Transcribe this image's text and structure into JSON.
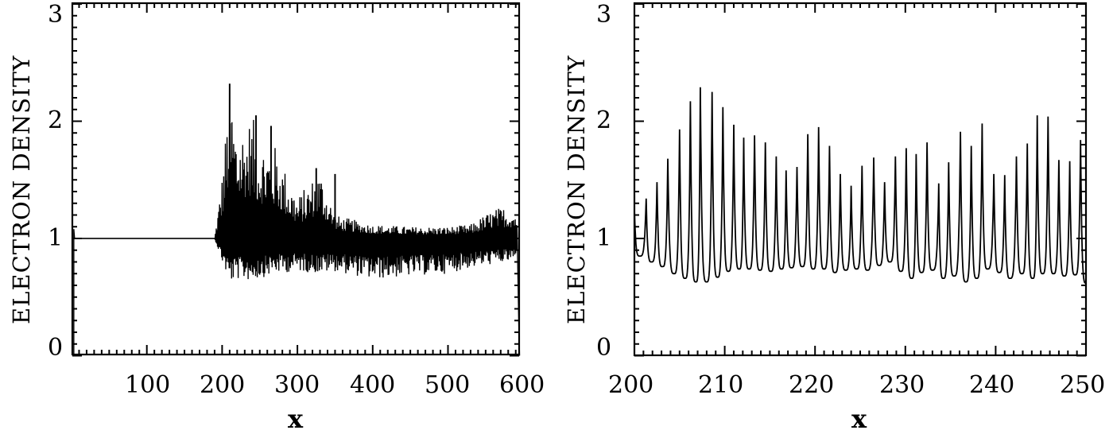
{
  "chart_data": [
    {
      "type": "line",
      "title": "",
      "xlabel": "x",
      "ylabel": "ELECTRON DENSITY",
      "xlim": [
        0,
        595
      ],
      "ylim": [
        -0.1,
        3.0
      ],
      "xticks": [
        100,
        200,
        300,
        400,
        500,
        600
      ],
      "xtick_labels": [
        "100",
        "200",
        "300",
        "400",
        "500",
        "600"
      ],
      "yticks": [
        0,
        1,
        2,
        3
      ],
      "ytick_labels": [
        "0",
        "1",
        "2",
        "3"
      ],
      "grid": false,
      "legend": null,
      "description": "Electron density profile: ~0 at x<3, flat at 1.0 from x≈3 to ≈190, then strong oscillations beginning ≈195 with maximum peak ≈2.32 near x≈210, decaying envelope to ~1±0.15 by x≈400, slight growth near x≈560-590, dropping to 0 at x≈595.",
      "envelope": {
        "x": [
          3,
          10,
          100,
          190,
          200,
          210,
          220,
          240,
          250,
          270,
          300,
          330,
          350,
          400,
          450,
          500,
          530,
          560,
          580,
          592,
          595
        ],
        "upper": [
          1.08,
          1.0,
          1.0,
          1.0,
          1.55,
          2.32,
          1.95,
          2.05,
          1.85,
          1.8,
          1.35,
          1.6,
          1.2,
          1.12,
          1.1,
          1.1,
          1.12,
          1.25,
          1.28,
          1.25,
          0.0
        ],
        "lower": [
          0.0,
          1.0,
          1.0,
          1.0,
          0.8,
          0.62,
          0.65,
          0.64,
          0.66,
          0.7,
          0.72,
          0.7,
          0.72,
          0.65,
          0.68,
          0.7,
          0.75,
          0.78,
          0.8,
          0.82,
          0.0
        ]
      },
      "notable_peaks": [
        {
          "x": 210,
          "y": 2.32
        },
        {
          "x": 245,
          "y": 2.05
        },
        {
          "x": 265,
          "y": 1.96
        },
        {
          "x": 325,
          "y": 1.6
        },
        {
          "x": 350,
          "y": 1.55
        }
      ]
    },
    {
      "type": "line",
      "title": "",
      "xlabel": "x",
      "ylabel": "ELECTRON DENSITY",
      "xlim": [
        200,
        250
      ],
      "ylim": [
        -0.1,
        3.0
      ],
      "xticks": [
        200,
        210,
        220,
        230,
        240,
        250
      ],
      "xtick_labels": [
        "200",
        "210",
        "220",
        "230",
        "240",
        "250"
      ],
      "yticks": [
        0,
        1,
        2,
        3
      ],
      "ytick_labels": [
        "0",
        "1",
        "2",
        "3"
      ],
      "grid": false,
      "legend": null,
      "description": "Zoom of left panel over x=200..250: periodic sharp peaks with period ≈1.2, minima ≈0.62-0.85.",
      "peaks": {
        "x": [
          200.0,
          201.3,
          202.5,
          203.7,
          205.0,
          206.2,
          207.3,
          208.6,
          209.8,
          211.0,
          212.1,
          213.3,
          214.5,
          215.7,
          216.8,
          218.0,
          219.2,
          220.4,
          221.6,
          222.8,
          224.0,
          225.2,
          226.5,
          227.7,
          228.9,
          230.1,
          231.2,
          232.4,
          233.7,
          234.8,
          236.1,
          237.3,
          238.5,
          239.8,
          241.0,
          242.3,
          243.5,
          244.6,
          245.8,
          247.0,
          248.2,
          249.4
        ],
        "y": [
          1.25,
          1.34,
          1.48,
          1.68,
          1.93,
          2.17,
          2.29,
          2.25,
          2.12,
          1.97,
          1.86,
          1.88,
          1.82,
          1.7,
          1.58,
          1.61,
          1.89,
          1.95,
          1.79,
          1.55,
          1.45,
          1.62,
          1.69,
          1.48,
          1.7,
          1.77,
          1.72,
          1.82,
          1.47,
          1.65,
          1.91,
          1.79,
          1.98,
          1.55,
          1.54,
          1.7,
          1.81,
          2.05,
          2.04,
          1.67,
          1.66,
          1.84
        ]
      },
      "minima": {
        "x": [
          200.6,
          201.9,
          203.1,
          204.4,
          205.6,
          206.8,
          208.0,
          209.2,
          210.4,
          211.6,
          212.7,
          213.9,
          215.1,
          216.3,
          217.4,
          218.6,
          219.8,
          221.0,
          222.2,
          223.4,
          224.6,
          225.8,
          227.1,
          228.3,
          229.5,
          230.7,
          231.8,
          233.0,
          234.2,
          235.4,
          236.7,
          237.9,
          239.1,
          240.4,
          241.6,
          242.9,
          244.1,
          245.2,
          246.4,
          247.6,
          248.8,
          250.0
        ],
        "y": [
          0.85,
          0.8,
          0.76,
          0.7,
          0.66,
          0.63,
          0.63,
          0.67,
          0.72,
          0.74,
          0.74,
          0.73,
          0.72,
          0.74,
          0.75,
          0.76,
          0.74,
          0.74,
          0.71,
          0.73,
          0.74,
          0.73,
          0.77,
          0.8,
          0.72,
          0.66,
          0.71,
          0.73,
          0.66,
          0.68,
          0.63,
          0.66,
          0.74,
          0.71,
          0.66,
          0.7,
          0.66,
          0.7,
          0.7,
          0.68,
          0.69,
          0.62
        ]
      }
    }
  ],
  "panels": {
    "left": {
      "ylabel": "ELECTRON DENSITY",
      "xlabel": "x",
      "xtick_labels": [
        "100",
        "200",
        "300",
        "400",
        "500",
        "600"
      ],
      "ytick_labels": [
        "0",
        "1",
        "2",
        "3"
      ]
    },
    "right": {
      "ylabel": "ELECTRON DENSITY",
      "xlabel": "x",
      "xtick_labels": [
        "200",
        "210",
        "220",
        "230",
        "240",
        "250"
      ],
      "ytick_labels": [
        "0",
        "1",
        "2",
        "3"
      ]
    }
  },
  "style": {
    "line_color": "#000000",
    "background": "#ffffff"
  }
}
